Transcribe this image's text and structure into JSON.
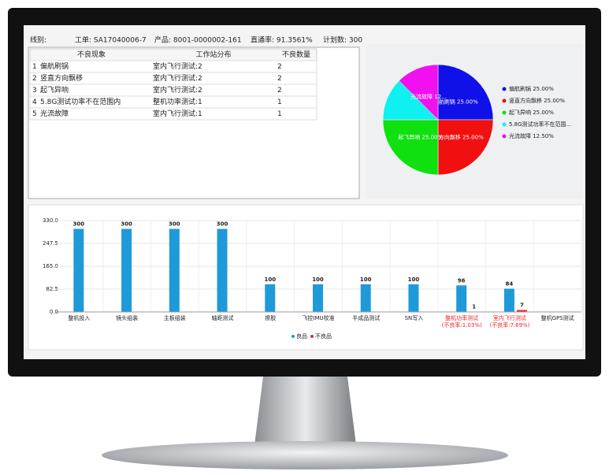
{
  "header": {
    "fields": [
      "线别:",
      "工单: SA17040006-7",
      "产品: 8001-0000002-161",
      "直通率: 91.3561%",
      "计划数: 300"
    ]
  },
  "table": {
    "columns": [
      "不良现象",
      "工作站分布",
      "不良数量"
    ],
    "rows": [
      [
        "1",
        "偏航刷锅",
        "室内飞行测试:2",
        "2"
      ],
      [
        "2",
        "竖直方向飘移",
        "室内飞行测试:2",
        "2"
      ],
      [
        "3",
        "起飞异响",
        "室内飞行测试:2",
        "2"
      ],
      [
        "4",
        "5.8G测试功率不在范围内",
        "整机功率测试:1",
        "1"
      ],
      [
        "5",
        "光流故障",
        "室内飞行测试:1",
        "1"
      ]
    ]
  },
  "pie_chart": {
    "type": "pie",
    "values": [
      25,
      25,
      25,
      12.5,
      12.5
    ],
    "colors": [
      "#1010e8",
      "#f01010",
      "#10e010",
      "#10f0f0",
      "#f010f0"
    ],
    "legend": [
      "偏航刷锅 25.00%",
      "竖直方向飘移 25.00%",
      "起飞异响 25.00%",
      "5.8G测试功率不在范围...",
      "光流故障 12.50%"
    ],
    "slice_labels": [
      "偏航刷锅 25.00%",
      "竖直方向飘移 25.00%",
      "起飞异响 25.00%",
      null,
      "光流故障 12..."
    ]
  },
  "bar_chart": {
    "type": "bar",
    "categories": [
      "整机投入",
      "镜头组装",
      "主板组装",
      "轴距测试",
      "擦胶",
      "飞控IMU校准",
      "半成品测试",
      "SN写入",
      "整机功率测试",
      "室内飞行测试",
      "整机GPS测试"
    ],
    "category_notes": [
      null,
      null,
      null,
      null,
      null,
      null,
      null,
      null,
      "(不良率:1.03%)",
      "(不良率:7.69%)",
      null
    ],
    "note_color": "#e8262b",
    "series": [
      {
        "name": "良品",
        "color": "#1f9ad8",
        "values": [
          300,
          300,
          300,
          300,
          100,
          100,
          100,
          100,
          96,
          84,
          null
        ]
      },
      {
        "name": "不良品",
        "color": "#e8262b",
        "values": [
          null,
          null,
          null,
          null,
          null,
          null,
          null,
          null,
          1,
          7,
          null
        ]
      }
    ],
    "ylim": [
      0,
      330
    ],
    "yticks": [
      {
        "value": 0,
        "label": "0.0"
      },
      82.5,
      {
        "value": 165,
        "label": "165.0"
      },
      247.5,
      {
        "value": 330,
        "label": "330.0"
      }
    ],
    "grid": true
  }
}
